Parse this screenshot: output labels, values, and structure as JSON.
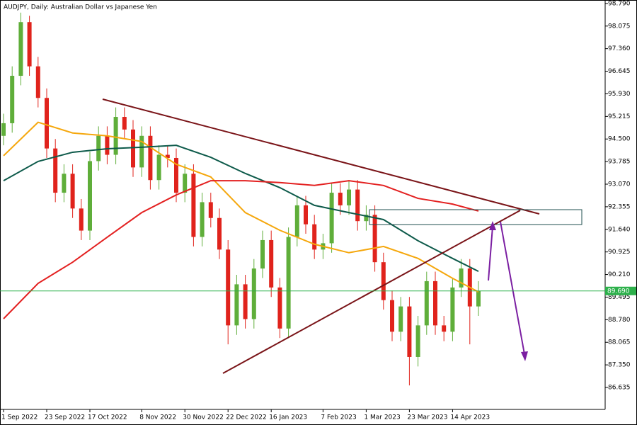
{
  "chart_data": {
    "type": "candlestick",
    "title": "AUDJPY, Daily:  Australian Dollar vs Japanese Yen",
    "categories": [
      "1 Sep 2022",
      null,
      null,
      null,
      null,
      "23 Sep 2022",
      null,
      null,
      null,
      null,
      "17 Oct 2022",
      null,
      null,
      null,
      null,
      null,
      "8 Nov 2022",
      null,
      null,
      null,
      null,
      "30 Nov 2022",
      null,
      null,
      null,
      null,
      "22 Dec 2022",
      null,
      null,
      null,
      null,
      "16 Jan 2023",
      null,
      null,
      null,
      null,
      null,
      "7 Feb 2023",
      null,
      null,
      null,
      null,
      "1 Mar 2023",
      null,
      null,
      null,
      null,
      "23 Mar 2023",
      null,
      null,
      null,
      null,
      "14 Apr 2023",
      null,
      null,
      null
    ],
    "open": [
      94.6,
      95.0,
      96.5,
      98.2,
      96.8,
      95.8,
      94.2,
      92.8,
      93.4,
      92.3,
      91.6,
      93.8,
      94.6,
      94.0,
      95.2,
      94.8,
      93.6,
      94.6,
      93.2,
      94.0,
      93.9,
      92.8,
      93.4,
      91.4,
      92.5,
      92.0,
      91.0,
      88.6,
      89.9,
      88.8,
      90.4,
      91.3,
      89.8,
      88.5,
      91.4,
      92.4,
      91.8,
      91.0,
      91.2,
      92.8,
      92.4,
      92.9,
      91.9,
      92.1,
      90.6,
      89.4,
      88.4,
      89.2,
      87.6,
      88.6,
      90.0,
      88.6,
      88.4,
      89.8,
      90.4,
      89.2
    ],
    "high": [
      95.3,
      96.8,
      98.5,
      98.4,
      97.1,
      96.1,
      94.5,
      93.7,
      93.7,
      92.6,
      94.1,
      94.9,
      94.9,
      95.5,
      95.5,
      95.1,
      94.9,
      94.9,
      94.3,
      94.3,
      94.2,
      93.7,
      93.7,
      92.8,
      92.8,
      92.3,
      91.3,
      90.2,
      90.2,
      90.7,
      91.6,
      91.6,
      90.1,
      91.7,
      92.7,
      92.7,
      92.1,
      91.5,
      93.1,
      93.1,
      93.2,
      93.2,
      92.4,
      92.4,
      90.9,
      89.7,
      89.5,
      89.5,
      88.9,
      90.3,
      90.3,
      88.9,
      90.1,
      90.7,
      90.7,
      90.0
    ],
    "low": [
      94.3,
      94.7,
      96.2,
      96.5,
      95.5,
      93.9,
      92.5,
      92.5,
      92.0,
      91.3,
      91.3,
      93.5,
      93.7,
      93.7,
      94.5,
      93.3,
      93.3,
      92.9,
      92.9,
      93.6,
      92.5,
      92.5,
      91.1,
      91.1,
      91.7,
      90.7,
      88.0,
      88.3,
      88.5,
      88.5,
      90.1,
      89.5,
      88.2,
      88.2,
      91.1,
      91.5,
      90.7,
      90.7,
      90.9,
      92.1,
      92.1,
      91.6,
      91.6,
      90.3,
      89.1,
      88.1,
      88.1,
      86.7,
      87.3,
      88.3,
      88.3,
      88.1,
      88.1,
      89.5,
      88.0,
      88.9
    ],
    "close": [
      95.0,
      96.5,
      98.2,
      96.8,
      95.8,
      94.2,
      92.8,
      93.4,
      92.3,
      91.6,
      93.8,
      94.6,
      94.0,
      95.2,
      94.8,
      93.6,
      94.6,
      93.2,
      94.0,
      93.9,
      92.8,
      93.4,
      91.4,
      92.5,
      92.0,
      91.0,
      88.6,
      89.9,
      88.8,
      90.4,
      91.3,
      89.8,
      88.5,
      91.4,
      92.4,
      91.8,
      91.0,
      91.2,
      92.8,
      92.4,
      92.9,
      91.9,
      92.1,
      90.6,
      89.4,
      88.4,
      89.2,
      87.6,
      88.6,
      90.0,
      88.6,
      88.4,
      89.8,
      90.4,
      89.2,
      89.69
    ],
    "up_color": "#5fae3a",
    "down_color": "#e0231c",
    "lines": [
      {
        "color": "#f5a70c",
        "x": [
          0,
          4,
          8,
          12,
          16,
          20,
          24,
          28,
          32,
          36,
          40,
          44,
          48,
          52,
          55
        ],
        "values": [
          93.97,
          95.03,
          94.69,
          94.6,
          94.42,
          93.7,
          93.3,
          92.17,
          91.61,
          91.17,
          90.9,
          91.1,
          90.72,
          90.09,
          89.66
        ]
      },
      {
        "color": "#0d5a4a",
        "x": [
          0,
          4,
          8,
          12,
          16,
          20,
          24,
          28,
          32,
          36,
          40,
          44,
          48,
          52,
          55
        ],
        "values": [
          93.18,
          93.79,
          94.08,
          94.19,
          94.24,
          94.3,
          93.92,
          93.41,
          92.96,
          92.4,
          92.17,
          91.95,
          91.28,
          90.72,
          90.31
        ]
      },
      {
        "color": "#e32020",
        "x": [
          0,
          4,
          8,
          12,
          16,
          20,
          24,
          28,
          32,
          36,
          40,
          44,
          48,
          52,
          55
        ],
        "values": [
          88.81,
          89.93,
          90.6,
          91.39,
          92.17,
          92.73,
          93.18,
          93.18,
          93.12,
          93.03,
          93.18,
          93.03,
          92.62,
          92.44,
          92.22
        ]
      }
    ],
    "last_price": {
      "value": 89.69,
      "label": "89.690"
    },
    "last_price_color": "#2db04b",
    "ylim": [
      85.94,
      98.9
    ],
    "yticks": [
      {
        "value": 98.79,
        "label": "98.790"
      },
      {
        "value": 98.075,
        "label": "98.075"
      },
      {
        "value": 97.36,
        "label": "97.360"
      },
      {
        "value": 96.645,
        "label": "96.645"
      },
      {
        "value": 95.93,
        "label": "95.930"
      },
      {
        "value": 95.215,
        "label": "95.215"
      },
      {
        "value": 94.5,
        "label": "94.500"
      },
      {
        "value": 93.785,
        "label": "93.785"
      },
      {
        "value": 93.07,
        "label": "93.070"
      },
      {
        "value": 92.355,
        "label": "92.355"
      },
      {
        "value": 91.64,
        "label": "91.640"
      },
      {
        "value": 90.925,
        "label": "90.925"
      },
      {
        "value": 90.21,
        "label": "90.210"
      },
      {
        "value": 89.495,
        "label": "89.495"
      },
      {
        "value": 88.78,
        "label": "88.780"
      },
      {
        "value": 88.065,
        "label": "88.065"
      },
      {
        "value": 87.35,
        "label": "87.350"
      },
      {
        "value": 86.635,
        "label": "86.635"
      }
    ]
  }
}
